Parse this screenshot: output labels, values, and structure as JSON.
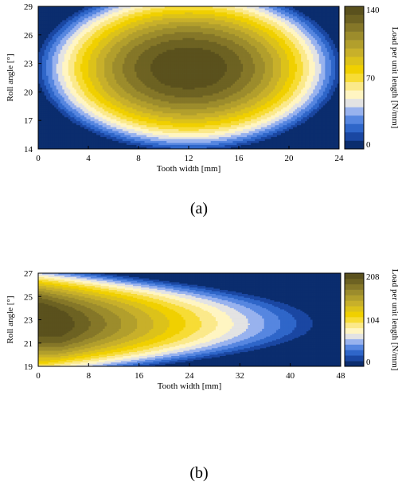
{
  "colors": {
    "scale": [
      "#0b2d6e",
      "#1a47a2",
      "#2f66c9",
      "#5686e0",
      "#98b2ee",
      "#e3e3e3",
      "#fff5c2",
      "#fbe98a",
      "#f7dc35",
      "#f0d000",
      "#dcc21a",
      "#c8b02a",
      "#b29f2c",
      "#9c8c2c",
      "#857728",
      "#6d6222",
      "#5a511d"
    ]
  },
  "chart_data": [
    {
      "type": "heatmap",
      "panel_label": "(a)",
      "xlabel": "Tooth width [mm]",
      "ylabel": "Roll angle [°]",
      "colorbar_label": "Load per unit length [N/mm]",
      "xlim": [
        0,
        24
      ],
      "ylim": [
        14,
        29
      ],
      "xticks": [
        "0",
        "4",
        "8",
        "12",
        "16",
        "20",
        "24"
      ],
      "yticks": [
        "14",
        "17",
        "20",
        "23",
        "26",
        "29"
      ],
      "colorbar_ticks": [
        "0",
        "70",
        "140"
      ],
      "zlim": [
        0,
        140
      ],
      "levels": 16,
      "field": {
        "kind": "ellipse",
        "center": [
          12,
          22.5
        ],
        "semi_axes": [
          12.5,
          9
        ],
        "peak": 140
      }
    },
    {
      "type": "heatmap",
      "panel_label": "(b)",
      "xlabel": "Tooth width [mm]",
      "ylabel": "Roll angle [°]",
      "colorbar_label": "Load per unit length [N/mm]",
      "xlim": [
        0,
        48
      ],
      "ylim": [
        19,
        27
      ],
      "xticks": [
        "0",
        "8",
        "16",
        "24",
        "32",
        "40",
        "48"
      ],
      "yticks": [
        "19",
        "21",
        "23",
        "25",
        "27"
      ],
      "colorbar_ticks": [
        "0",
        "104",
        "208"
      ],
      "zlim": [
        0,
        208
      ],
      "levels": 16,
      "field": {
        "kind": "skewed",
        "center": [
          3,
          23
        ],
        "peak": 208
      }
    }
  ]
}
